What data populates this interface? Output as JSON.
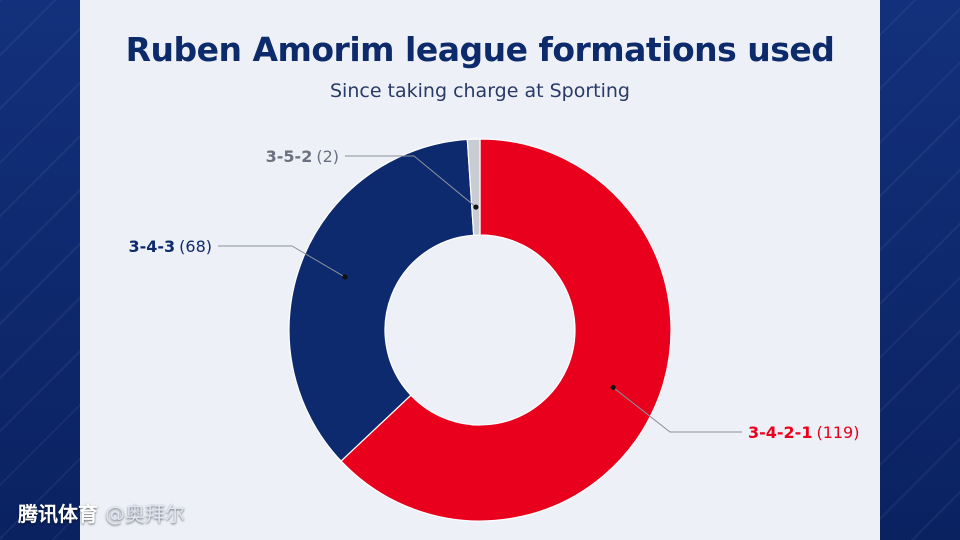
{
  "chart_data": {
    "type": "pie",
    "style": "donut",
    "title": "Ruben Amorim league formations used",
    "subtitle": "Since taking charge at Sporting",
    "slices": [
      {
        "label": "3-4-2-1",
        "value": 119,
        "value_text": "(119)",
        "color": "#e8001c"
      },
      {
        "label": "3-4-3",
        "value": 68,
        "value_text": "(68)",
        "color": "#0e2a6e"
      },
      {
        "label": "3-5-2",
        "value": 2,
        "value_text": "(2)",
        "color": "#c9ccd2"
      }
    ],
    "label_colors": {
      "3-4-2-1": "#e8001c",
      "3-4-3": "#0e2a6e",
      "3-5-2": "#6b7080"
    }
  },
  "watermark": {
    "brand": "腾讯体育",
    "author": "@奥拜尔"
  }
}
